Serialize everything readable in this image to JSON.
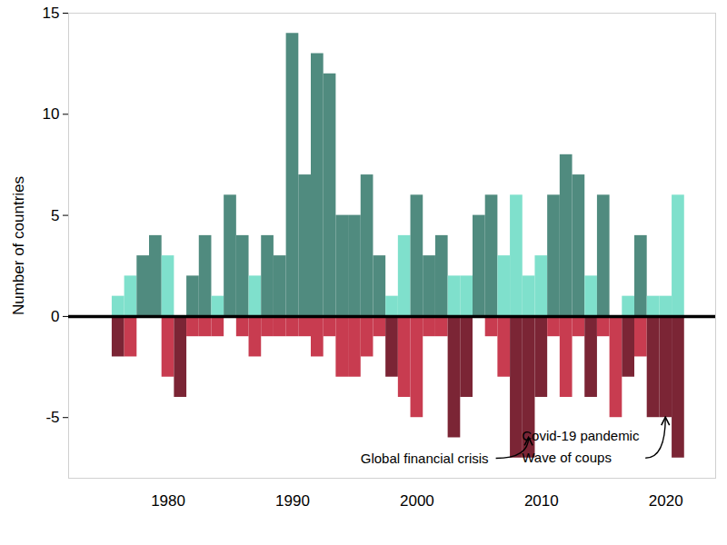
{
  "chart_data": {
    "type": "bar",
    "ylabel": "Number of countries",
    "x": [
      1976,
      1977,
      1978,
      1979,
      1980,
      1981,
      1982,
      1983,
      1984,
      1985,
      1986,
      1987,
      1988,
      1989,
      1990,
      1991,
      1992,
      1993,
      1994,
      1995,
      1996,
      1997,
      1998,
      1999,
      2000,
      2001,
      2002,
      2003,
      2004,
      2005,
      2006,
      2007,
      2008,
      2009,
      2010,
      2011,
      2012,
      2013,
      2014,
      2015,
      2016,
      2017,
      2018,
      2019,
      2020,
      2021
    ],
    "series": [
      {
        "values": [
          1,
          2,
          3,
          4,
          3,
          0,
          2,
          4,
          1,
          6,
          4,
          2,
          4,
          3,
          14,
          7,
          13,
          12,
          5,
          5,
          7,
          3,
          1,
          4,
          6,
          3,
          4,
          2,
          2,
          5,
          6,
          3,
          6,
          2,
          3,
          6,
          8,
          7,
          2,
          6,
          0,
          1,
          4,
          1,
          1,
          6
        ],
        "colors": [
          "#7fe0cc",
          "#7fe0cc",
          "#508b7f",
          "#508b7f",
          "#7fe0cc",
          "#508b7f",
          "#508b7f",
          "#508b7f",
          "#7fe0cc",
          "#508b7f",
          "#508b7f",
          "#7fe0cc",
          "#508b7f",
          "#508b7f",
          "#508b7f",
          "#508b7f",
          "#508b7f",
          "#508b7f",
          "#508b7f",
          "#508b7f",
          "#508b7f",
          "#508b7f",
          "#7fe0cc",
          "#7fe0cc",
          "#508b7f",
          "#508b7f",
          "#508b7f",
          "#7fe0cc",
          "#7fe0cc",
          "#508b7f",
          "#508b7f",
          "#7fe0cc",
          "#7fe0cc",
          "#7fe0cc",
          "#7fe0cc",
          "#508b7f",
          "#508b7f",
          "#508b7f",
          "#7fe0cc",
          "#508b7f",
          "#508b7f",
          "#7fe0cc",
          "#508b7f",
          "#7fe0cc",
          "#7fe0cc",
          "#7fe0cc"
        ]
      },
      {
        "values": [
          -2,
          -2,
          0,
          0,
          -3,
          -4,
          -1,
          -1,
          -1,
          0,
          -1,
          -2,
          -1,
          -1,
          -1,
          -1,
          -2,
          -1,
          -3,
          -3,
          -2,
          -1,
          -3,
          -4,
          -5,
          -1,
          -1,
          -6,
          -4,
          0,
          -1,
          -3,
          -7,
          -7,
          -4,
          -1,
          -4,
          -1,
          -4,
          -1,
          -5,
          -3,
          -2,
          -5,
          -5,
          -7
        ],
        "colors": [
          "#7b2535",
          "#c83c50",
          "#c83c50",
          "#c83c50",
          "#c83c50",
          "#7b2535",
          "#c83c50",
          "#c83c50",
          "#c83c50",
          "#c83c50",
          "#c83c50",
          "#c83c50",
          "#c83c50",
          "#c83c50",
          "#c83c50",
          "#c83c50",
          "#c83c50",
          "#c83c50",
          "#c83c50",
          "#c83c50",
          "#c83c50",
          "#c83c50",
          "#7b2535",
          "#c83c50",
          "#c83c50",
          "#c83c50",
          "#c83c50",
          "#7b2535",
          "#7b2535",
          "#c83c50",
          "#c83c50",
          "#c83c50",
          "#7b2535",
          "#7b2535",
          "#7b2535",
          "#c83c50",
          "#c83c50",
          "#c83c50",
          "#7b2535",
          "#c83c50",
          "#c83c50",
          "#7b2535",
          "#c83c50",
          "#7b2535",
          "#7b2535",
          "#7b2535"
        ]
      }
    ],
    "xlim": [
      1972,
      2024
    ],
    "xticks": [
      1980,
      1990,
      2000,
      2010,
      2020
    ],
    "ylim": [
      -8,
      15
    ],
    "yticks": [
      -5,
      0,
      5,
      10,
      15
    ],
    "annotations": [
      {
        "text": [
          "Global financial crisis"
        ],
        "x": 2009,
        "y": -6
      },
      {
        "text": [
          "Covid-19 pandemic",
          "Wave of coups"
        ],
        "x": 2020,
        "y": -5
      }
    ]
  }
}
